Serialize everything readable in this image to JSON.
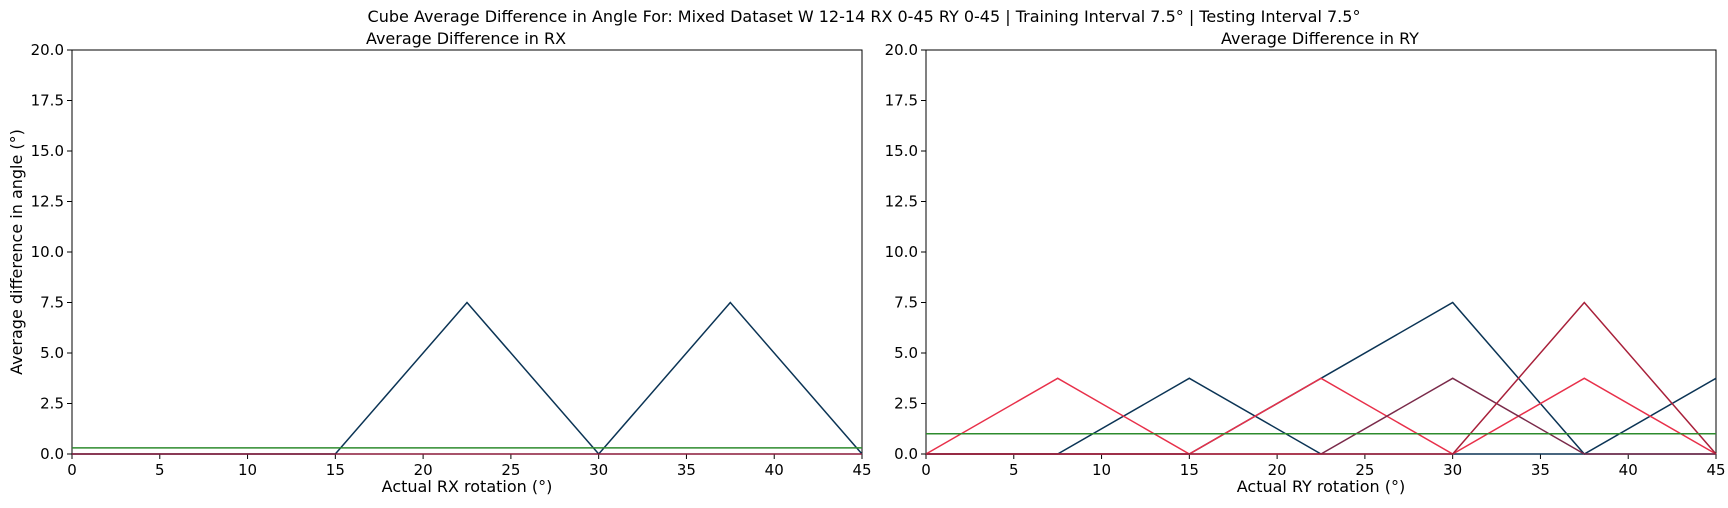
{
  "suptitle": "Cube Average Difference in Angle For: Mixed Dataset W 12-14 RX 0-45 RY 0-45 | Training Interval 7.5° | Testing Interval 7.5°",
  "chart_data": [
    {
      "type": "line",
      "title": "Average Difference in RX",
      "xlabel": "Actual RX rotation (°)",
      "ylabel": "Average difference in angle (°)",
      "xlim": [
        0,
        45
      ],
      "ylim": [
        0,
        20
      ],
      "xticks": [
        "0",
        "5",
        "10",
        "15",
        "20",
        "25",
        "30",
        "35",
        "40",
        "45"
      ],
      "yticks": [
        "0.0",
        "2.5",
        "5.0",
        "7.5",
        "10.0",
        "12.5",
        "15.0",
        "17.5",
        "20.0"
      ],
      "grid": false,
      "x": [
        0,
        7.5,
        15,
        22.5,
        30,
        37.5,
        45
      ],
      "series": [
        {
          "color": "#0b3455",
          "values": [
            0,
            0,
            0,
            7.5,
            0,
            7.5,
            0
          ]
        },
        {
          "color": "#2e8b2e",
          "values": [
            0.3,
            0.3,
            0.3,
            0.3,
            0.3,
            0.3,
            0.3
          ]
        },
        {
          "color": "#8b1a3a",
          "values": [
            0,
            0,
            0,
            0,
            0,
            0,
            0
          ]
        }
      ]
    },
    {
      "type": "line",
      "title": "Average Difference in RY",
      "xlabel": "Actual RY rotation (°)",
      "ylabel": "",
      "xlim": [
        0,
        45
      ],
      "ylim": [
        0,
        20
      ],
      "xticks": [
        "0",
        "5",
        "10",
        "15",
        "20",
        "25",
        "30",
        "35",
        "40",
        "45"
      ],
      "yticks": [
        "0.0",
        "2.5",
        "5.0",
        "7.5",
        "10.0",
        "12.5",
        "15.0",
        "17.5",
        "20.0"
      ],
      "grid": false,
      "x": [
        0,
        7.5,
        15,
        22.5,
        30,
        37.5,
        45
      ],
      "series": [
        {
          "color": "#0b3455",
          "values": [
            0,
            0,
            3.75,
            0,
            0,
            0,
            0
          ]
        },
        {
          "color": "#0b3455",
          "values": [
            0,
            0,
            0,
            3.75,
            7.5,
            0,
            3.75
          ]
        },
        {
          "color": "#e8304a",
          "values": [
            0,
            3.75,
            0,
            3.75,
            0,
            3.75,
            0
          ]
        },
        {
          "color": "#7a2a4a",
          "values": [
            0,
            0,
            0,
            0,
            3.75,
            0,
            0
          ]
        },
        {
          "color": "#a8203a",
          "values": [
            0,
            0,
            0,
            0,
            0,
            7.5,
            0
          ]
        },
        {
          "color": "#2e8b2e",
          "values": [
            1.0,
            1.0,
            1.0,
            1.0,
            1.0,
            1.0,
            1.0
          ]
        }
      ]
    }
  ]
}
